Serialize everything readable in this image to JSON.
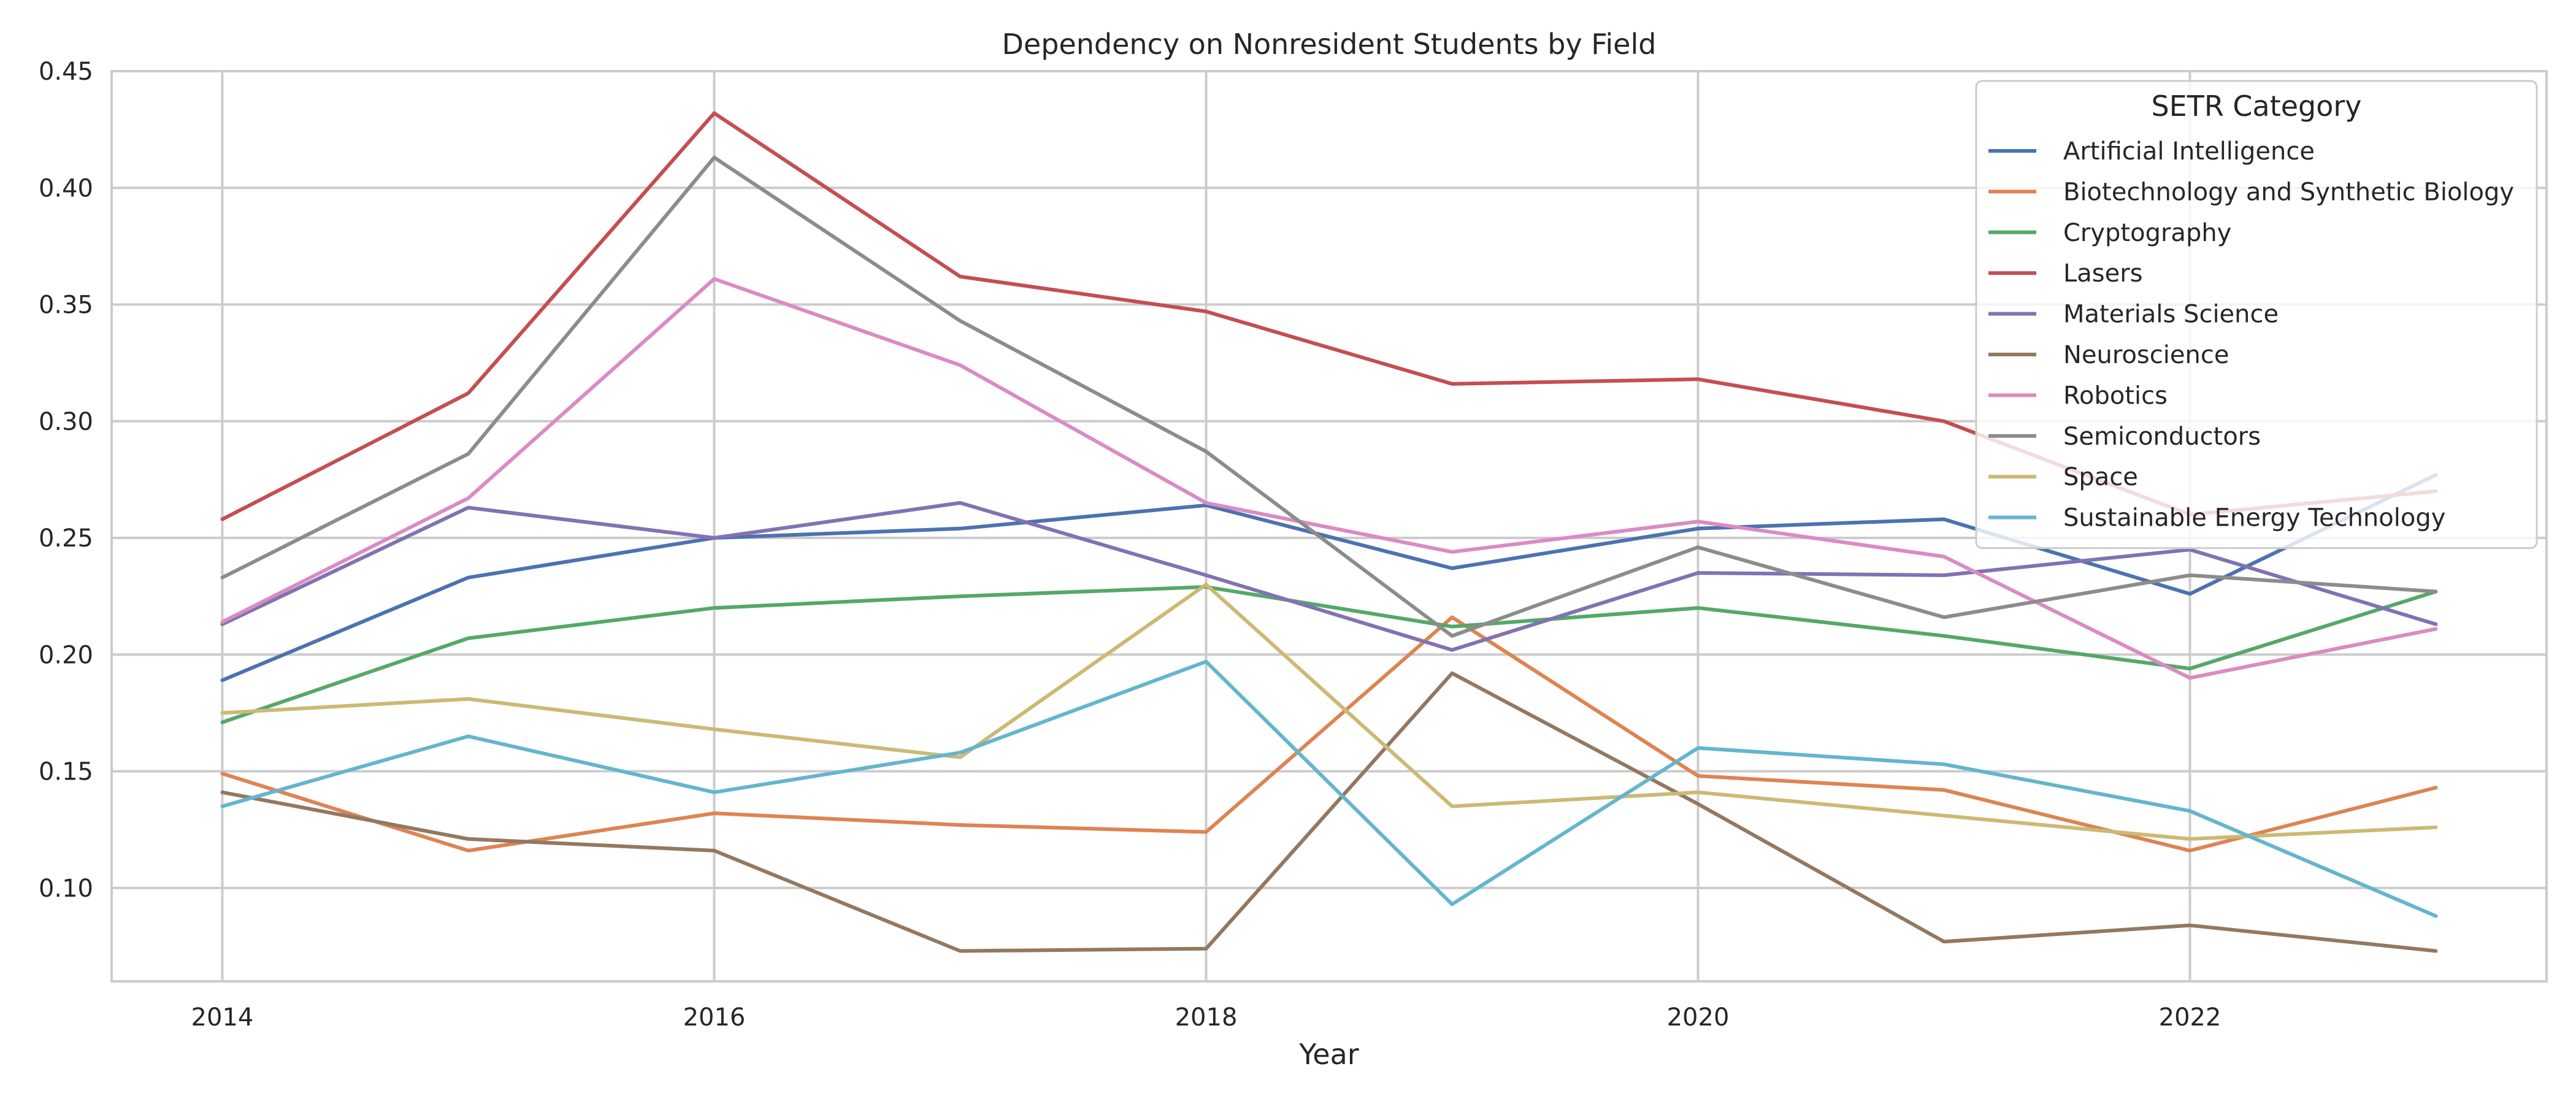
{
  "chart_data": {
    "type": "line",
    "title": "Dependency on Nonresident Students by Field",
    "xlabel": "Year",
    "ylabel": "",
    "xlim": [
      2013.55,
      2023.45
    ],
    "ylim": [
      0.06,
      0.45
    ],
    "x": [
      2014,
      2015,
      2016,
      2017,
      2018,
      2019,
      2020,
      2021,
      2022,
      2023
    ],
    "xticks": [
      2014,
      2016,
      2018,
      2020,
      2022
    ],
    "yticks": [
      0.1,
      0.15,
      0.2,
      0.25,
      0.3,
      0.35,
      0.4,
      0.45
    ],
    "ytick_labels": [
      "0.10",
      "0.15",
      "0.20",
      "0.25",
      "0.30",
      "0.35",
      "0.40",
      "0.45"
    ],
    "grid": true,
    "legend": {
      "title": "SETR Category",
      "placement": "top-right"
    },
    "series": [
      {
        "name": "Artificial Intelligence",
        "color": "#4c72b0",
        "values": [
          0.189,
          0.233,
          0.25,
          0.254,
          0.264,
          0.237,
          0.254,
          0.258,
          0.226,
          0.277
        ]
      },
      {
        "name": "Biotechnology and Synthetic Biology",
        "color": "#dd8452",
        "values": [
          0.149,
          0.116,
          0.132,
          0.127,
          0.124,
          0.216,
          0.148,
          0.142,
          0.116,
          0.143
        ]
      },
      {
        "name": "Cryptography",
        "color": "#55a868",
        "values": [
          0.171,
          0.207,
          0.22,
          0.225,
          0.229,
          0.212,
          0.22,
          0.208,
          0.194,
          0.227
        ]
      },
      {
        "name": "Lasers",
        "color": "#c44e52",
        "values": [
          0.258,
          0.312,
          0.432,
          0.362,
          0.347,
          0.316,
          0.318,
          0.3,
          0.26,
          0.27
        ]
      },
      {
        "name": "Materials Science",
        "color": "#8172b3",
        "values": [
          0.213,
          0.263,
          0.25,
          0.265,
          0.234,
          0.202,
          0.235,
          0.234,
          0.245,
          0.213
        ]
      },
      {
        "name": "Neuroscience",
        "color": "#937860",
        "values": [
          0.141,
          0.121,
          0.116,
          0.073,
          0.074,
          0.192,
          0.136,
          0.077,
          0.084,
          0.073
        ]
      },
      {
        "name": "Robotics",
        "color": "#da8bc3",
        "values": [
          0.214,
          0.267,
          0.361,
          0.324,
          0.265,
          0.244,
          0.257,
          0.242,
          0.19,
          0.211
        ]
      },
      {
        "name": "Semiconductors",
        "color": "#8c8c8c",
        "values": [
          0.233,
          0.286,
          0.413,
          0.343,
          0.287,
          0.208,
          0.246,
          0.216,
          0.234,
          0.227
        ]
      },
      {
        "name": "Space",
        "color": "#ccb974",
        "values": [
          0.175,
          0.181,
          0.168,
          0.156,
          0.23,
          0.135,
          0.141,
          0.131,
          0.121,
          0.126
        ]
      },
      {
        "name": "Sustainable Energy Technology",
        "color": "#64b5cd",
        "values": [
          0.135,
          0.165,
          0.141,
          0.158,
          0.197,
          0.093,
          0.16,
          0.153,
          0.133,
          0.088
        ]
      }
    ]
  }
}
